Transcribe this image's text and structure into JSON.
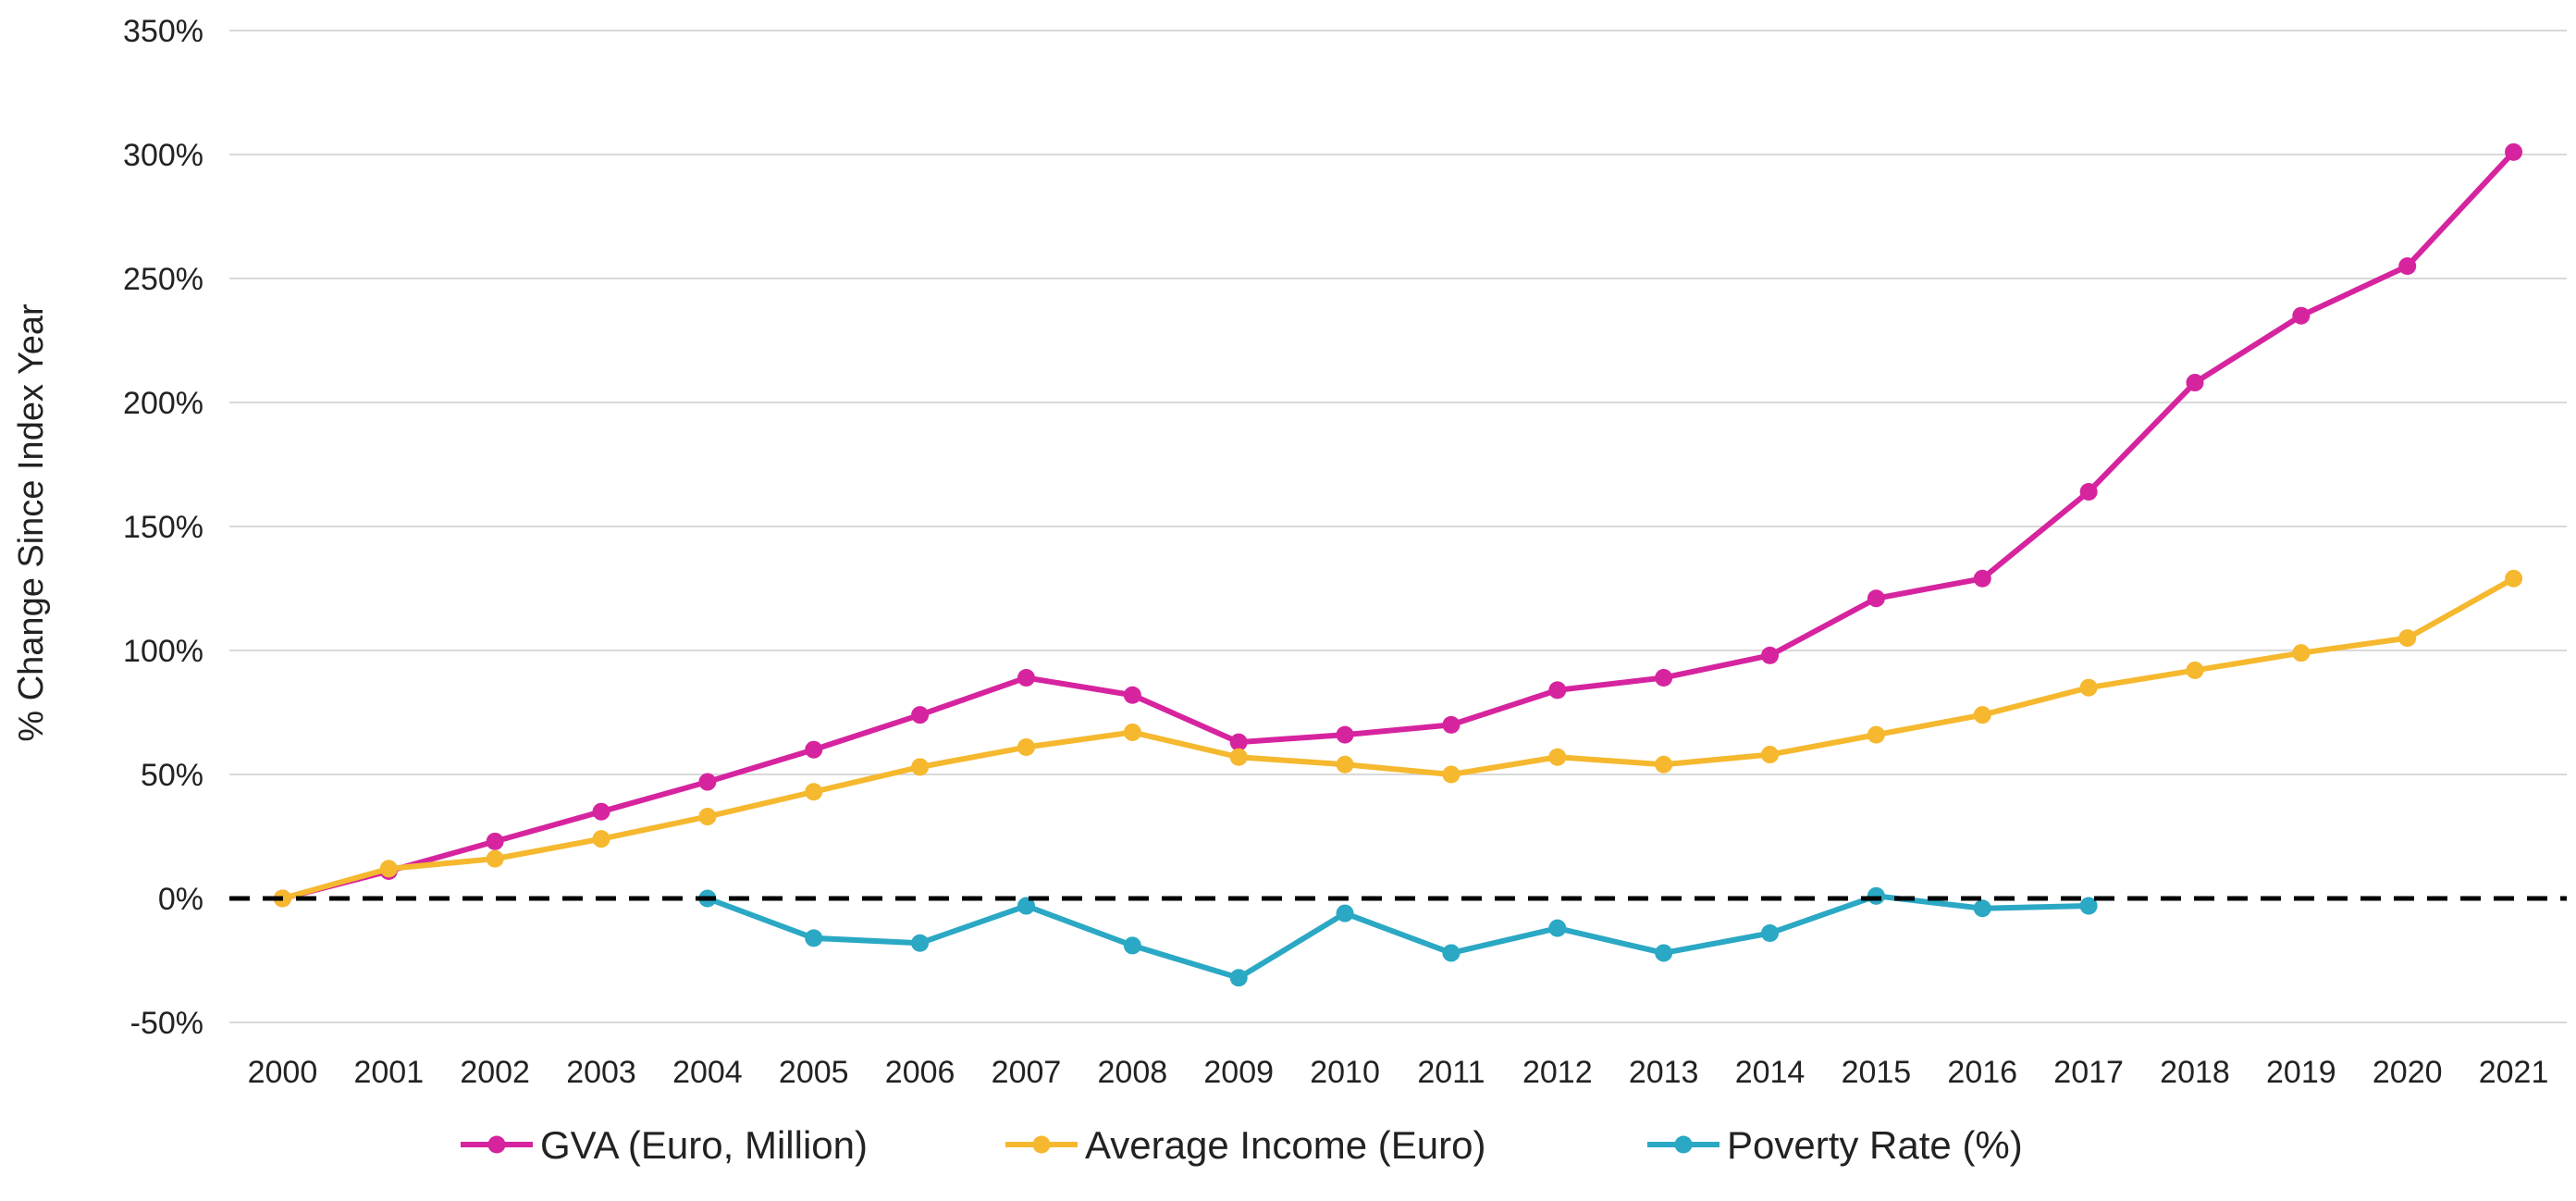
{
  "chart_data": {
    "type": "line",
    "title": "",
    "xlabel": "",
    "ylabel": "% Change Since Index Year",
    "ylim": [
      -50,
      350
    ],
    "yticks": [
      -50,
      0,
      50,
      100,
      150,
      200,
      250,
      300,
      350
    ],
    "ytick_labels": [
      "-50%",
      "0%",
      "50%",
      "100%",
      "150%",
      "200%",
      "250%",
      "300%",
      "350%"
    ],
    "grid": true,
    "legend_position": "bottom",
    "reference_line": {
      "y": 0,
      "style": "dashed",
      "color": "#000000"
    },
    "x": [
      "2000",
      "2001",
      "2002",
      "2003",
      "2004",
      "2005",
      "2006",
      "2007",
      "2008",
      "2009",
      "2010",
      "2011",
      "2012",
      "2013",
      "2014",
      "2015",
      "2016",
      "2017",
      "2018",
      "2019",
      "2020",
      "2021"
    ],
    "series": [
      {
        "name": "GVA (Euro, Million)",
        "color": "#d6249f",
        "values": [
          0,
          11,
          23,
          35,
          47,
          60,
          74,
          89,
          82,
          63,
          66,
          70,
          84,
          89,
          98,
          121,
          129,
          164,
          208,
          235,
          255,
          301
        ]
      },
      {
        "name": "Average Income (Euro)",
        "color": "#f5b82e",
        "values": [
          0,
          12,
          16,
          24,
          33,
          43,
          53,
          61,
          67,
          57,
          54,
          50,
          57,
          54,
          58,
          66,
          74,
          85,
          92,
          99,
          105,
          129
        ]
      },
      {
        "name": "Poverty Rate (%)",
        "color": "#2aa8c4",
        "values": [
          null,
          null,
          null,
          null,
          0,
          -16,
          -18,
          -3,
          -19,
          -32,
          -6,
          -22,
          -12,
          -22,
          -14,
          1,
          -4,
          -3,
          null,
          null,
          null,
          null
        ]
      }
    ]
  }
}
